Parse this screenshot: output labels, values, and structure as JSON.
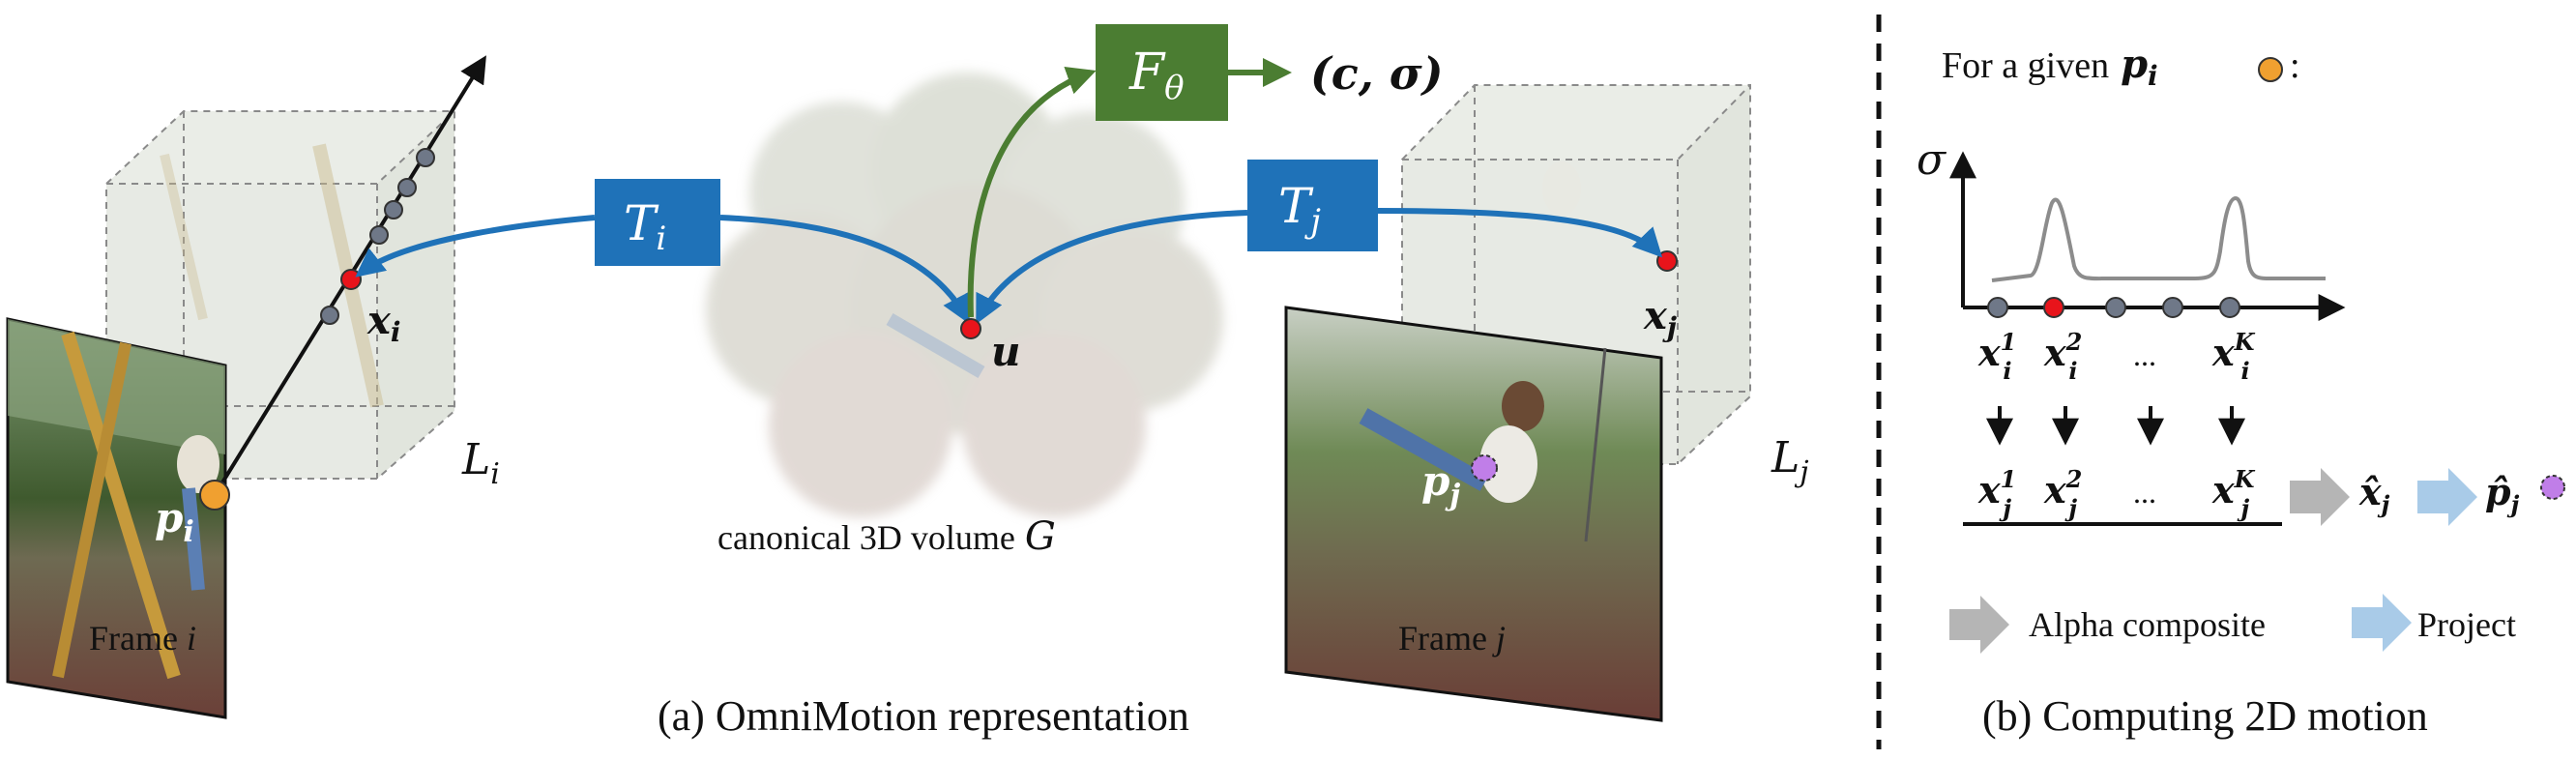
{
  "panel_a": {
    "caption": "(a) OmniMotion representation",
    "frame_i": {
      "label": "Frame i",
      "point": "p",
      "sub": "i"
    },
    "frame_j": {
      "label": "Frame j",
      "point": "p",
      "sub": "j"
    },
    "box_i": {
      "label": "L",
      "sub": "i"
    },
    "box_j": {
      "label": "L",
      "sub": "j"
    },
    "x_i": {
      "label": "x",
      "sub": "i"
    },
    "x_j": {
      "label": "x",
      "sub": "j"
    },
    "u": "u",
    "canonical": {
      "text": "canonical 3D volume",
      "symbol": "G"
    },
    "T_i": {
      "symbol": "T",
      "sub": "i"
    },
    "T_j": {
      "symbol": "T",
      "sub": "j"
    },
    "F": {
      "symbol": "F",
      "sub": "θ"
    },
    "output": "(c, σ)"
  },
  "panel_b": {
    "caption": "(b) Computing 2D motion",
    "header": {
      "prefix": "For a given",
      "point": "p",
      "sub": "i",
      "suffix": ":"
    },
    "sigma_axis": "σ",
    "samples_i": [
      "x",
      "x",
      "...",
      "x"
    ],
    "samples_i_sup": [
      "1",
      "2",
      "",
      "K"
    ],
    "samples_i_sub": [
      "i",
      "i",
      "",
      "i"
    ],
    "samples_j_sup": [
      "1",
      "2",
      "",
      "K"
    ],
    "samples_j_sub": [
      "j",
      "j",
      "",
      "j"
    ],
    "xhat": {
      "label": "x̂",
      "sub": "j"
    },
    "phat": {
      "label": "p̂",
      "sub": "j"
    },
    "legend": {
      "alpha": "Alpha composite",
      "project": "Project"
    }
  },
  "colors": {
    "blue": "#1f72b8",
    "green": "#4b7d32",
    "red": "#e8141b",
    "orange": "#f0a030",
    "purple": "#c07ee8",
    "gray_dot": "#6f7888",
    "gray_arrow": "#b5b5b5",
    "light_blue_arrow": "#a9cbe8"
  }
}
